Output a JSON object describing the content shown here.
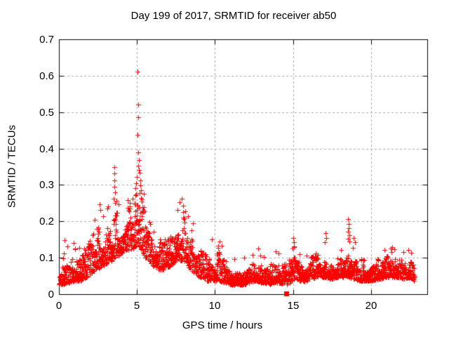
{
  "page": {
    "background": "#ffffff",
    "text_color": "#000000"
  },
  "chart_data": {
    "type": "scatter",
    "title": "Day 199 of 2017, SRMTID for receiver ab50",
    "xlabel": "GPS time / hours",
    "ylabel": "SRMTID / TECUs",
    "xlim": [
      0,
      23.6
    ],
    "ylim": [
      0,
      0.7
    ],
    "xticks": [
      0,
      5,
      10,
      15,
      20
    ],
    "xtick_labels": [
      "0",
      "5",
      "10",
      "15",
      "20"
    ],
    "yticks": [
      0,
      0.1,
      0.2,
      0.3,
      0.4,
      0.5,
      0.6,
      0.7
    ],
    "ytick_labels": [
      "0",
      "0.1",
      "0.2",
      "0.3",
      "0.4",
      "0.5",
      "0.6",
      "0.7"
    ],
    "grid": {
      "show": true,
      "color": "#aaaaaa",
      "dash": [
        3,
        3
      ]
    },
    "border_color": "#000000",
    "legend": "none",
    "marker": {
      "shape": "plus",
      "size": 7,
      "color": "#ff0000"
    },
    "series": [
      {
        "name": "SRMTID",
        "x_start": 0.02,
        "x_end": 22.78,
        "points_per_hour": 110,
        "seed": 20170199,
        "envelope": [
          [
            0.0,
            0.02,
            0.09
          ],
          [
            0.3,
            0.02,
            0.1
          ],
          [
            0.6,
            0.025,
            0.1
          ],
          [
            1.0,
            0.03,
            0.11
          ],
          [
            1.4,
            0.03,
            0.12
          ],
          [
            1.8,
            0.04,
            0.15
          ],
          [
            2.2,
            0.05,
            0.2
          ],
          [
            2.6,
            0.06,
            0.22
          ],
          [
            3.0,
            0.07,
            0.21
          ],
          [
            3.4,
            0.08,
            0.22
          ],
          [
            3.6,
            0.09,
            0.26
          ],
          [
            3.9,
            0.1,
            0.22
          ],
          [
            4.2,
            0.11,
            0.23
          ],
          [
            4.5,
            0.11,
            0.25
          ],
          [
            4.8,
            0.11,
            0.28
          ],
          [
            5.0,
            0.12,
            0.31
          ],
          [
            5.25,
            0.11,
            0.3
          ],
          [
            5.45,
            0.09,
            0.26
          ],
          [
            5.7,
            0.08,
            0.21
          ],
          [
            6.0,
            0.07,
            0.18
          ],
          [
            6.4,
            0.06,
            0.14
          ],
          [
            6.8,
            0.06,
            0.16
          ],
          [
            7.2,
            0.07,
            0.18
          ],
          [
            7.6,
            0.08,
            0.22
          ],
          [
            7.9,
            0.08,
            0.24
          ],
          [
            8.2,
            0.07,
            0.21
          ],
          [
            8.6,
            0.05,
            0.17
          ],
          [
            9.0,
            0.04,
            0.13
          ],
          [
            9.4,
            0.03,
            0.11
          ],
          [
            9.8,
            0.03,
            0.12
          ],
          [
            10.2,
            0.03,
            0.12
          ],
          [
            10.6,
            0.025,
            0.1
          ],
          [
            11.0,
            0.02,
            0.09
          ],
          [
            11.4,
            0.02,
            0.085
          ],
          [
            11.8,
            0.02,
            0.09
          ],
          [
            12.2,
            0.025,
            0.095
          ],
          [
            12.6,
            0.03,
            0.1
          ],
          [
            13.0,
            0.025,
            0.095
          ],
          [
            13.4,
            0.02,
            0.09
          ],
          [
            13.8,
            0.025,
            0.095
          ],
          [
            14.2,
            0.025,
            0.09
          ],
          [
            14.6,
            0.02,
            0.09
          ],
          [
            15.0,
            0.03,
            0.12
          ],
          [
            15.4,
            0.03,
            0.1
          ],
          [
            15.8,
            0.03,
            0.1
          ],
          [
            16.2,
            0.035,
            0.11
          ],
          [
            16.6,
            0.04,
            0.115
          ],
          [
            17.0,
            0.04,
            0.12
          ],
          [
            17.4,
            0.035,
            0.11
          ],
          [
            17.8,
            0.04,
            0.115
          ],
          [
            18.2,
            0.04,
            0.12
          ],
          [
            18.55,
            0.04,
            0.135
          ],
          [
            18.9,
            0.035,
            0.12
          ],
          [
            19.3,
            0.03,
            0.105
          ],
          [
            19.7,
            0.03,
            0.1
          ],
          [
            20.1,
            0.03,
            0.1
          ],
          [
            20.5,
            0.035,
            0.105
          ],
          [
            20.9,
            0.04,
            0.115
          ],
          [
            21.3,
            0.04,
            0.12
          ],
          [
            21.7,
            0.04,
            0.115
          ],
          [
            22.1,
            0.035,
            0.11
          ],
          [
            22.5,
            0.04,
            0.11
          ],
          [
            22.78,
            0.03,
            0.1
          ]
        ],
        "outliers": [
          [
            0.36,
            0.148
          ],
          [
            0.55,
            0.132
          ],
          [
            0.95,
            0.14
          ],
          [
            1.05,
            0.125
          ],
          [
            2.3,
            0.205
          ],
          [
            2.6,
            0.247
          ],
          [
            2.65,
            0.232
          ],
          [
            2.82,
            0.215
          ],
          [
            3.1,
            0.235
          ],
          [
            3.52,
            0.262
          ],
          [
            3.54,
            0.295
          ],
          [
            3.55,
            0.35
          ],
          [
            3.56,
            0.332
          ],
          [
            3.57,
            0.312
          ],
          [
            3.58,
            0.28
          ],
          [
            3.6,
            0.25
          ],
          [
            4.4,
            0.258
          ],
          [
            4.55,
            0.25
          ],
          [
            4.7,
            0.262
          ],
          [
            4.84,
            0.25
          ],
          [
            4.88,
            0.272
          ],
          [
            4.92,
            0.292
          ],
          [
            4.95,
            0.305
          ],
          [
            4.98,
            0.322
          ],
          [
            5.02,
            0.437
          ],
          [
            5.05,
            0.611
          ],
          [
            5.06,
            0.39
          ],
          [
            5.07,
            0.52
          ],
          [
            5.08,
            0.352
          ],
          [
            5.09,
            0.485
          ],
          [
            5.11,
            0.368
          ],
          [
            5.13,
            0.342
          ],
          [
            5.16,
            0.333
          ],
          [
            5.18,
            0.278
          ],
          [
            5.2,
            0.312
          ],
          [
            5.22,
            0.298
          ],
          [
            5.24,
            0.285
          ],
          [
            5.28,
            0.265
          ],
          [
            5.32,
            0.255
          ],
          [
            5.36,
            0.24
          ],
          [
            5.4,
            0.232
          ],
          [
            5.45,
            0.275
          ],
          [
            7.6,
            0.232
          ],
          [
            7.75,
            0.252
          ],
          [
            7.85,
            0.262
          ],
          [
            7.95,
            0.243
          ],
          [
            8.1,
            0.228
          ],
          [
            8.25,
            0.215
          ],
          [
            9.8,
            0.15
          ],
          [
            10.3,
            0.145
          ],
          [
            10.45,
            0.133
          ],
          [
            12.75,
            0.125
          ],
          [
            13.9,
            0.118
          ],
          [
            14.05,
            0.112
          ],
          [
            14.98,
            0.125
          ],
          [
            15.02,
            0.155
          ],
          [
            15.05,
            0.143
          ],
          [
            15.08,
            0.132
          ],
          [
            17.05,
            0.142
          ],
          [
            17.08,
            0.168
          ],
          [
            17.12,
            0.155
          ],
          [
            18.5,
            0.152
          ],
          [
            18.52,
            0.172
          ],
          [
            18.54,
            0.207
          ],
          [
            18.56,
            0.193
          ],
          [
            18.58,
            0.182
          ],
          [
            18.6,
            0.162
          ],
          [
            18.62,
            0.145
          ],
          [
            18.9,
            0.155
          ],
          [
            18.95,
            0.142
          ],
          [
            21.35,
            0.13
          ],
          [
            21.5,
            0.124
          ],
          [
            22.55,
            0.114
          ]
        ],
        "square_markers": [
          [
            14.56,
            0.002
          ]
        ]
      }
    ]
  }
}
